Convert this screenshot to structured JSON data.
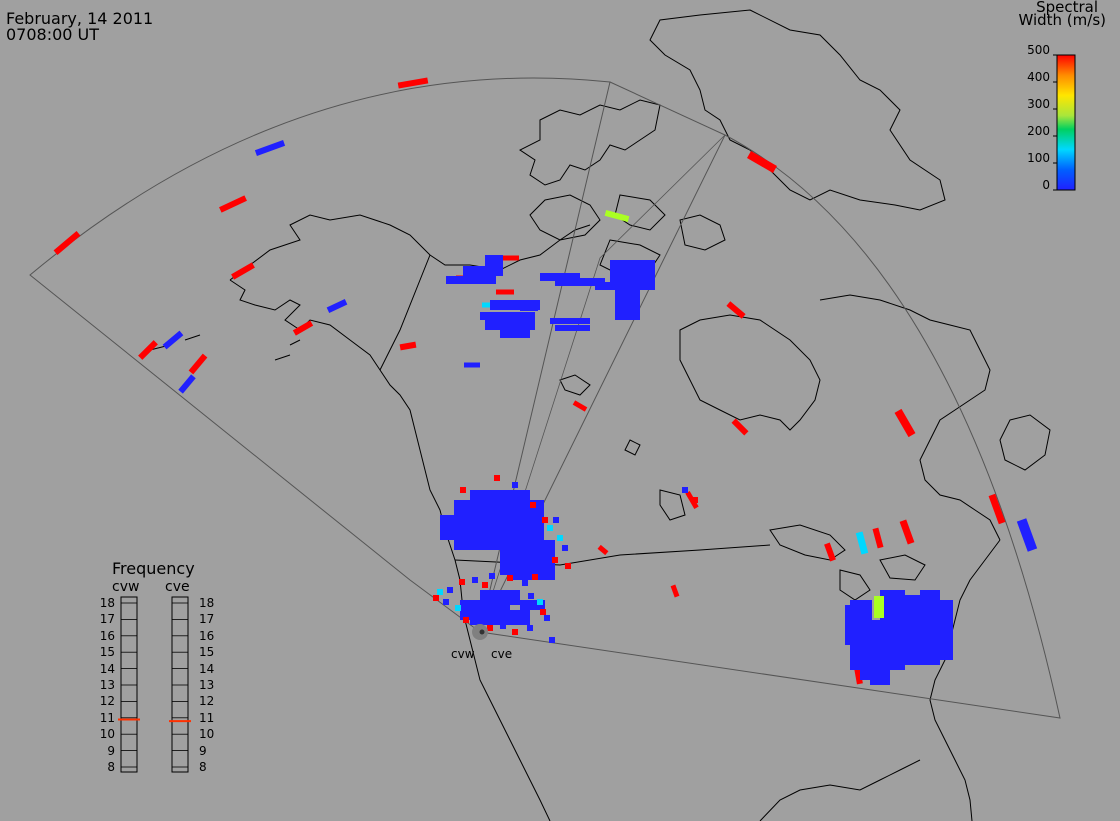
{
  "header": {
    "date": "February, 14 2011",
    "time": "0708:00 UT"
  },
  "colorbar": {
    "title_line1": "Spectral",
    "title_line2": "Width (m/s)",
    "ticks": [
      "500",
      "400",
      "300",
      "200",
      "100",
      "0"
    ],
    "colors": [
      "#ff0000",
      "#ff8c00",
      "#ffe600",
      "#a8e63c",
      "#00d060",
      "#00d8ff",
      "#0060ff",
      "#2020ff"
    ]
  },
  "frequency_panel": {
    "title": "Frequency",
    "radars": [
      "cvw",
      "cve"
    ],
    "ticks": [
      "18",
      "17",
      "16",
      "15",
      "14",
      "13",
      "12",
      "11",
      "10",
      "9",
      "8"
    ],
    "current_freq": {
      "cvw": 10.9,
      "cve": 10.8
    },
    "indicator_color": "#ff3000"
  },
  "sites": {
    "west": "cvw",
    "east": "cve"
  },
  "colors": {
    "background": "#a0a0a0",
    "coast": "#000000",
    "fov": "#555555",
    "low_width": "#2020ff",
    "high_width": "#ff0000",
    "cyan": "#00d8ff",
    "lime": "#aaff22"
  }
}
